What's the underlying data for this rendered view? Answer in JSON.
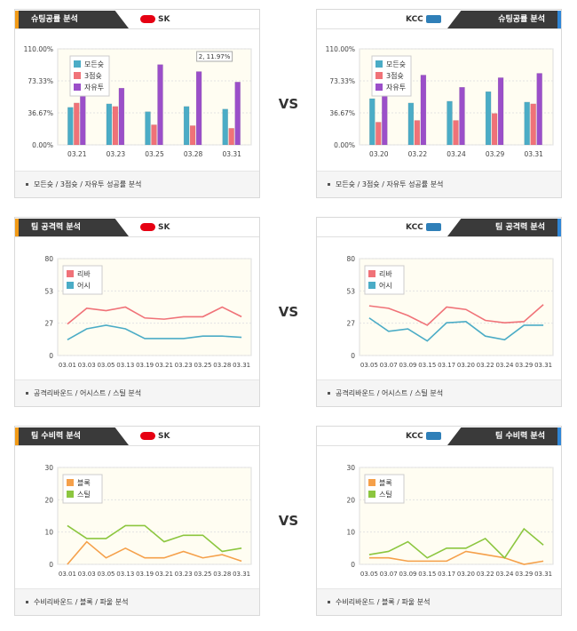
{
  "vs_label": "VS",
  "colors": {
    "teal": "#4bacc6",
    "red": "#f07278",
    "purple": "#9b4fc9",
    "orange": "#f5a04a",
    "green": "#8cc63f"
  },
  "panels": [
    {
      "tab": "슈팅공률 분석",
      "team": "SK",
      "footer": "모든슛 / 3점슛 / 자유투 성공률 분석",
      "chart_data": {
        "type": "bar",
        "categories": [
          "03.21",
          "03.23",
          "03.25",
          "03.28",
          "03.31"
        ],
        "ylim": [
          0,
          110
        ],
        "y_ticks": [
          "0.00%",
          "36.67%",
          "73.33%",
          "110.00%"
        ],
        "series": [
          {
            "name": "모든슛",
            "values": [
              43,
              47,
              38,
              44,
              41
            ]
          },
          {
            "name": "3점슛",
            "values": [
              48,
              44,
              23,
              22,
              19
            ]
          },
          {
            "name": "자유투",
            "values": [
              58,
              65,
              92,
              84,
              72
            ]
          }
        ],
        "annotation": "2, 11.97%"
      }
    },
    {
      "tab": "슈팅공률 분석",
      "team": "KCC",
      "footer": "모든슛 / 3점슛 / 자유투 성공률 분석",
      "chart_data": {
        "type": "bar",
        "categories": [
          "03.20",
          "03.22",
          "03.24",
          "03.29",
          "03.31"
        ],
        "ylim": [
          0,
          110
        ],
        "y_ticks": [
          "0.00%",
          "36.67%",
          "73.33%",
          "110.00%"
        ],
        "series": [
          {
            "name": "모든슛",
            "values": [
              53,
              48,
              50,
              61,
              49
            ]
          },
          {
            "name": "3점슛",
            "values": [
              26,
              28,
              28,
              36,
              47
            ]
          },
          {
            "name": "자유투",
            "values": [
              58,
              80,
              66,
              77,
              82
            ]
          }
        ]
      }
    },
    {
      "tab": "팀 공격력 분석",
      "team": "SK",
      "footer": "공격리바운드 / 어시스트 / 스틸 분석",
      "chart_data": {
        "type": "line",
        "categories": [
          "03.01",
          "03.03",
          "03.05",
          "03.13",
          "03.19",
          "03.21",
          "03.23",
          "03.25",
          "03.28",
          "03.31"
        ],
        "ylim": [
          0,
          80
        ],
        "y_ticks": [
          "0",
          "27",
          "53",
          "80"
        ],
        "series": [
          {
            "name": "리바",
            "values": [
              26,
              39,
              37,
              40,
              31,
              30,
              32,
              32,
              40,
              32
            ]
          },
          {
            "name": "어시",
            "values": [
              13,
              22,
              25,
              22,
              14,
              14,
              14,
              16,
              16,
              15
            ]
          }
        ]
      }
    },
    {
      "tab": "팀 공격력 분석",
      "team": "KCC",
      "footer": "공격리바운드 / 어시스트 / 스틸 분석",
      "chart_data": {
        "type": "line",
        "categories": [
          "03.05",
          "03.07",
          "03.09",
          "03.15",
          "03.17",
          "03.20",
          "03.22",
          "03.24",
          "03.29",
          "03.31"
        ],
        "ylim": [
          0,
          80
        ],
        "y_ticks": [
          "0",
          "27",
          "53",
          "80"
        ],
        "series": [
          {
            "name": "리바",
            "values": [
              41,
              39,
              33,
              25,
              40,
              38,
              29,
              27,
              28,
              42
            ]
          },
          {
            "name": "어시",
            "values": [
              31,
              20,
              22,
              12,
              27,
              28,
              16,
              13,
              25,
              25
            ]
          }
        ]
      }
    },
    {
      "tab": "팀 수비력 분석",
      "team": "SK",
      "footer": "수비리바운드 / 블록 / 파울 분석",
      "chart_data": {
        "type": "line",
        "categories": [
          "03.01",
          "03.03",
          "03.05",
          "03.13",
          "03.19",
          "03.21",
          "03.23",
          "03.25",
          "03.28",
          "03.31"
        ],
        "ylim": [
          0,
          30
        ],
        "y_ticks": [
          "0",
          "10",
          "20",
          "30"
        ],
        "series": [
          {
            "name": "블록",
            "values": [
              0,
              7,
              2,
              5,
              2,
              2,
              4,
              2,
              3,
              1
            ]
          },
          {
            "name": "스틸",
            "values": [
              12,
              8,
              8,
              12,
              12,
              7,
              9,
              9,
              4,
              5
            ]
          }
        ]
      }
    },
    {
      "tab": "팀 수비력 분석",
      "team": "KCC",
      "footer": "수비리바운드 / 블록 / 파울 분석",
      "chart_data": {
        "type": "line",
        "categories": [
          "03.05",
          "03.07",
          "03.09",
          "03.15",
          "03.17",
          "03.20",
          "03.22",
          "03.24",
          "03.29",
          "03.31"
        ],
        "ylim": [
          0,
          30
        ],
        "y_ticks": [
          "0",
          "10",
          "20",
          "30"
        ],
        "series": [
          {
            "name": "블록",
            "values": [
              2,
              2,
              1,
              1,
              1,
              4,
              3,
              2,
              0,
              1
            ]
          },
          {
            "name": "스틸",
            "values": [
              3,
              4,
              7,
              2,
              5,
              5,
              8,
              2,
              11,
              6
            ]
          }
        ]
      }
    }
  ]
}
